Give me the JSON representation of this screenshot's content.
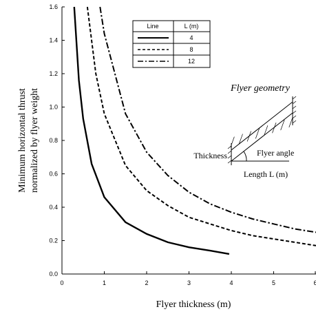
{
  "chart_data": {
    "type": "line",
    "title": "",
    "xlabel": "Flyer thickness (m)",
    "ylabel_line1": "Minimum horizontal thrust",
    "ylabel_line2": "normalized by flyer weight",
    "xlim": [
      0,
      6
    ],
    "ylim": [
      0.0,
      1.6
    ],
    "xticks": [
      "0",
      "1",
      "2",
      "3",
      "4",
      "5",
      "6"
    ],
    "yticks": [
      "0.0",
      "0.2",
      "0.4",
      "0.6",
      "0.8",
      "1.0",
      "1.2",
      "1.4",
      "1.6"
    ],
    "grid": false,
    "legend": {
      "placement": "top-center",
      "header_line": "Line",
      "header_value": "L (m)",
      "entries": [
        {
          "value": "4",
          "style": "solid"
        },
        {
          "value": "8",
          "style": "dashed"
        },
        {
          "value": "12",
          "style": "dash-dot"
        }
      ]
    },
    "series": [
      {
        "L": 4,
        "style": "solid",
        "x": [
          0.29,
          0.4,
          0.5,
          0.7,
          1.0,
          1.5,
          2.0,
          2.5,
          3.0,
          3.5,
          3.95
        ],
        "y": [
          1.6,
          1.16,
          0.93,
          0.66,
          0.46,
          0.31,
          0.24,
          0.19,
          0.16,
          0.14,
          0.12
        ]
      },
      {
        "L": 8,
        "style": "dashed",
        "x": [
          0.6,
          0.8,
          1.0,
          1.5,
          2.0,
          2.5,
          3.0,
          3.5,
          4.0,
          4.5,
          5.0,
          5.5,
          6.0
        ],
        "y": [
          1.6,
          1.2,
          0.96,
          0.65,
          0.5,
          0.41,
          0.34,
          0.3,
          0.26,
          0.23,
          0.21,
          0.19,
          0.17
        ]
      },
      {
        "L": 12,
        "style": "dash-dot",
        "x": [
          0.9,
          1.0,
          1.5,
          2.0,
          2.5,
          3.0,
          3.5,
          4.0,
          4.5,
          5.0,
          5.5,
          6.0
        ],
        "y": [
          1.6,
          1.44,
          0.96,
          0.73,
          0.59,
          0.49,
          0.42,
          0.37,
          0.33,
          0.3,
          0.27,
          0.25
        ]
      }
    ]
  },
  "inset": {
    "title": "Flyer geometry",
    "thickness_label": "Thickness",
    "angle_label": "Flyer angle",
    "length_label": "Length L (m)"
  }
}
